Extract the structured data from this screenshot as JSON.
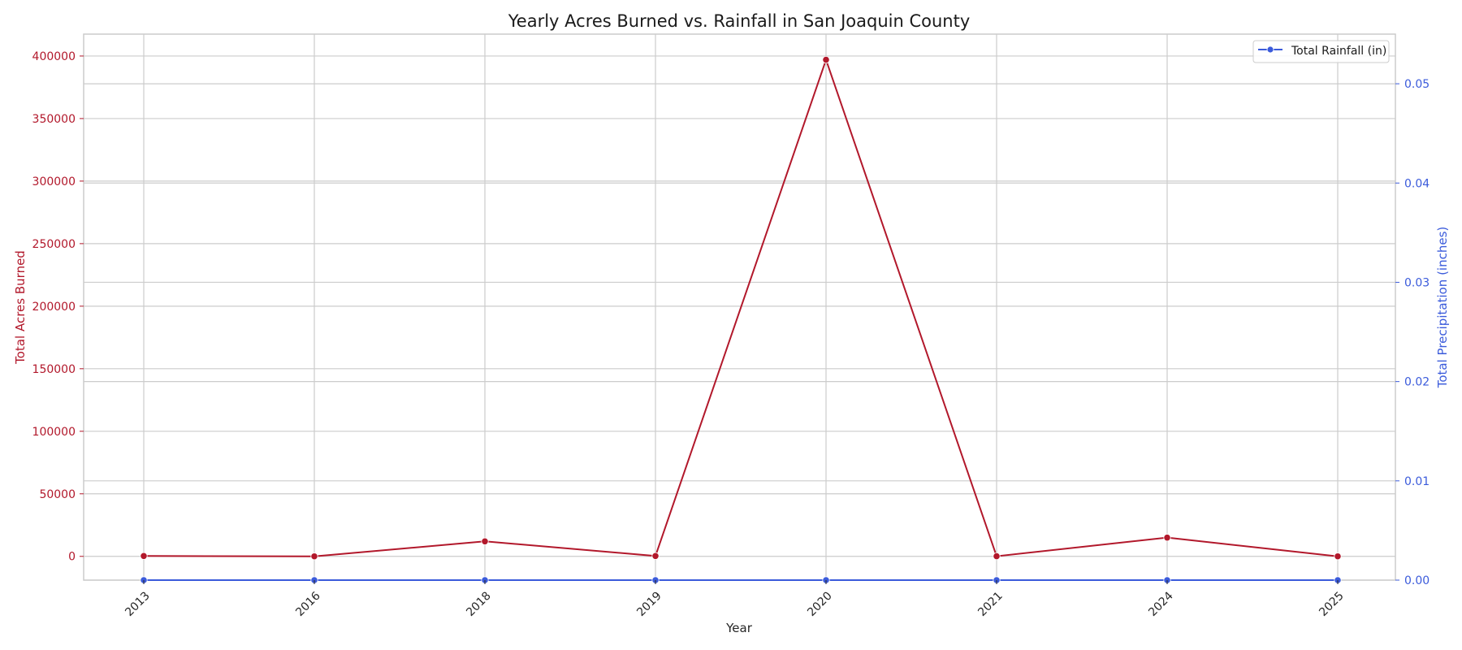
{
  "chart_data": {
    "type": "line",
    "title": "Yearly Acres Burned vs. Rainfall in San Joaquin County",
    "xlabel": "Year",
    "categories": [
      "2013",
      "2016",
      "2018",
      "2019",
      "2020",
      "2021",
      "2024",
      "2025"
    ],
    "y_left": {
      "label": "Total Acres Burned",
      "color": "#b2182b",
      "ylim": [
        -19000,
        417500
      ],
      "ticks": [
        0,
        50000,
        100000,
        150000,
        200000,
        250000,
        300000,
        350000,
        400000
      ]
    },
    "y_right": {
      "label": "Total Precipitation (inches)",
      "color": "#3b5bdb",
      "ylim": [
        0.0,
        0.055
      ],
      "ticks": [
        "0.00",
        "0.01",
        "0.02",
        "0.03",
        "0.04",
        "0.05"
      ]
    },
    "series": [
      {
        "axis": "left",
        "color": "#b2182b",
        "values": [
          300,
          0,
          12000,
          300,
          397000,
          100,
          15000,
          0
        ]
      },
      {
        "name": "Total Rainfall (in)",
        "axis": "right",
        "color": "#3b5bdb",
        "values": [
          0,
          0,
          0,
          0,
          0,
          0,
          0,
          0
        ]
      }
    ],
    "legend": {
      "placement": "top-right",
      "entries": [
        "Total Rainfall (in)"
      ]
    },
    "grid": true
  }
}
